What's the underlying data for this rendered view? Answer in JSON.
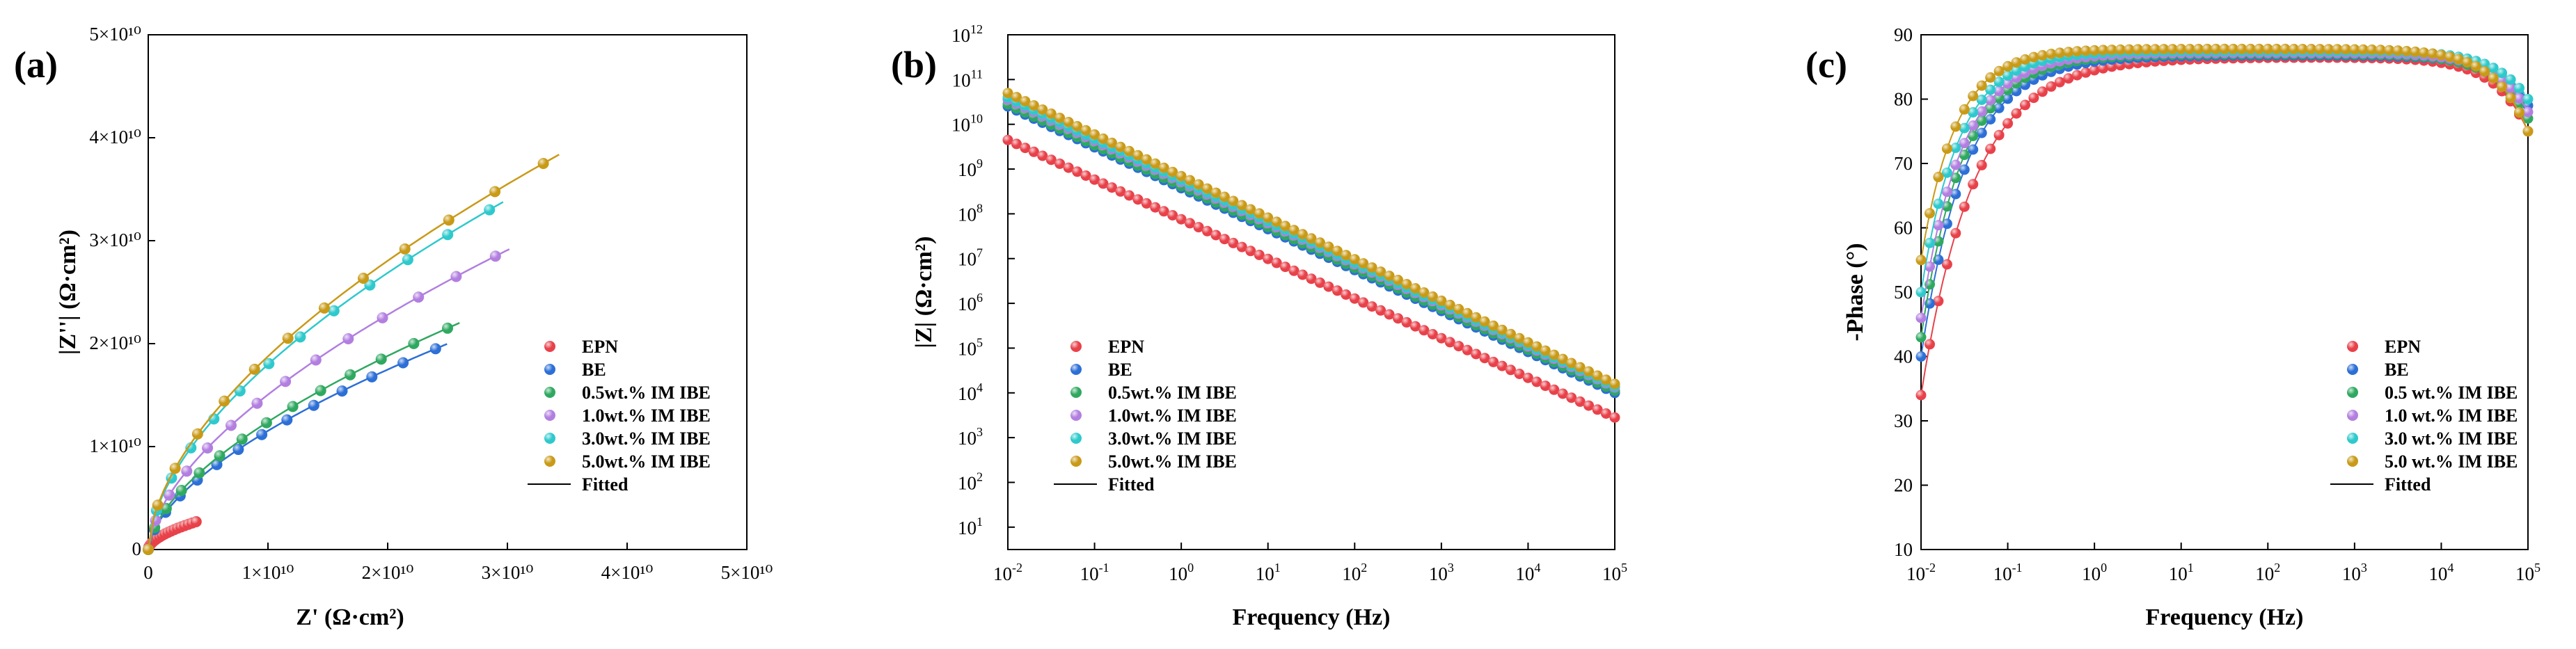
{
  "colors": {
    "EPN": "#e8414a",
    "BE": "#2c6fd6",
    "IBE05": "#2fa860",
    "IBE10": "#b27fe0",
    "IBE30": "#2ec9cc",
    "IBE50": "#c99a17",
    "fitted": "#000000"
  },
  "panels": {
    "a": {
      "letter": "(a)"
    },
    "b": {
      "letter": "(b)"
    },
    "c": {
      "letter": "(c)"
    }
  },
  "chart_data": [
    {
      "id": "a",
      "type": "scatter",
      "title": "",
      "xlabel": "Z' (Ω·cm²)",
      "ylabel": "|Z''| (Ω·cm²)",
      "xlim": [
        0,
        50000000000.0
      ],
      "ylim": [
        0,
        50000000000.0
      ],
      "xticks": [
        {
          "value": 0,
          "label": "0"
        },
        {
          "value": 10000000000.0,
          "label": "1×10¹⁰"
        },
        {
          "value": 20000000000.0,
          "label": "2×10¹⁰"
        },
        {
          "value": 30000000000.0,
          "label": "3×10¹⁰"
        },
        {
          "value": 40000000000.0,
          "label": "4×10¹⁰"
        },
        {
          "value": 50000000000.0,
          "label": "5×10¹⁰"
        }
      ],
      "yticks": [
        {
          "value": 0,
          "label": "0"
        },
        {
          "value": 10000000000.0,
          "label": "1×10¹⁰"
        },
        {
          "value": 20000000000.0,
          "label": "2×10¹⁰"
        },
        {
          "value": 30000000000.0,
          "label": "3×10¹⁰"
        },
        {
          "value": 40000000000.0,
          "label": "4×10¹⁰"
        },
        {
          "value": 50000000000.0,
          "label": "5×10¹⁰"
        }
      ],
      "legend": {
        "position": "center-right",
        "entries": [
          {
            "label": "EPN",
            "color_key": "EPN",
            "kind": "marker"
          },
          {
            "label": "BE",
            "color_key": "BE",
            "kind": "marker"
          },
          {
            "label": "0.5wt.% IM IBE",
            "color_key": "IBE05",
            "kind": "marker"
          },
          {
            "label": "1.0wt.% IM IBE",
            "color_key": "IBE10",
            "kind": "marker"
          },
          {
            "label": "3.0wt.% IM IBE",
            "color_key": "IBE30",
            "kind": "marker"
          },
          {
            "label": "5.0wt.% IM IBE",
            "color_key": "IBE50",
            "kind": "marker"
          },
          {
            "label": "Fitted",
            "color_key": "fitted",
            "kind": "line"
          }
        ]
      },
      "series": [
        {
          "name": "EPN",
          "color_key": "EPN",
          "x_end": 4000000000.0,
          "y_end": 2700000000.0,
          "shape_k": 0.55,
          "n": 18
        },
        {
          "name": "BE",
          "color_key": "BE",
          "x_end": 24000000000.0,
          "y_end": 19500000000.0,
          "shape_k": 0.6,
          "n": 13
        },
        {
          "name": "0.5wt.% IM IBE",
          "color_key": "IBE05",
          "x_end": 25000000000.0,
          "y_end": 21500000000.0,
          "shape_k": 0.6,
          "n": 13
        },
        {
          "name": "1.0wt.% IM IBE",
          "color_key": "IBE10",
          "x_end": 29000000000.0,
          "y_end": 28500000000.0,
          "shape_k": 0.6,
          "n": 13
        },
        {
          "name": "3.0wt.% IM IBE",
          "color_key": "IBE30",
          "x_end": 28500000000.0,
          "y_end": 33000000000.0,
          "shape_k": 0.58,
          "n": 12
        },
        {
          "name": "5.0wt.% IM IBE",
          "color_key": "IBE50",
          "x_end": 33000000000.0,
          "y_end": 37500000000.0,
          "shape_k": 0.58,
          "n": 12
        }
      ],
      "fitted_extend": 1.04
    },
    {
      "id": "b",
      "type": "scatter",
      "title": "",
      "xlabel": "Frequency (Hz)",
      "ylabel": "|Z| (Ω·cm²)",
      "xscale": "log",
      "yscale": "log",
      "xlim_exp": [
        -2,
        5
      ],
      "ylim_exp": [
        0.5,
        12
      ],
      "xticks": [
        {
          "exp": -2,
          "label": "10-2"
        },
        {
          "exp": -1,
          "label": "10-1"
        },
        {
          "exp": 0,
          "label": "100"
        },
        {
          "exp": 1,
          "label": "101"
        },
        {
          "exp": 2,
          "label": "102"
        },
        {
          "exp": 3,
          "label": "103"
        },
        {
          "exp": 4,
          "label": "104"
        },
        {
          "exp": 5,
          "label": "105"
        }
      ],
      "yticks": [
        {
          "exp": 1,
          "label": "101"
        },
        {
          "exp": 2,
          "label": "102"
        },
        {
          "exp": 3,
          "label": "103"
        },
        {
          "exp": 4,
          "label": "104"
        },
        {
          "exp": 5,
          "label": "105"
        },
        {
          "exp": 6,
          "label": "106"
        },
        {
          "exp": 7,
          "label": "107"
        },
        {
          "exp": 8,
          "label": "108"
        },
        {
          "exp": 9,
          "label": "109"
        },
        {
          "exp": 10,
          "label": "1010"
        },
        {
          "exp": 11,
          "label": "1011"
        },
        {
          "exp": 12,
          "label": "1012"
        }
      ],
      "legend": {
        "position": "lower-left",
        "entries": [
          {
            "label": "EPN",
            "color_key": "EPN",
            "kind": "marker"
          },
          {
            "label": "BE",
            "color_key": "BE",
            "kind": "marker"
          },
          {
            "label": "0.5wt.% IM IBE",
            "color_key": "IBE05",
            "kind": "marker"
          },
          {
            "label": "1.0wt.% IM IBE",
            "color_key": "IBE10",
            "kind": "marker"
          },
          {
            "label": "3.0wt.% IM IBE",
            "color_key": "IBE30",
            "kind": "marker"
          },
          {
            "label": "5.0wt.% IM IBE",
            "color_key": "IBE50",
            "kind": "marker"
          },
          {
            "label": "Fitted",
            "color_key": "fitted",
            "kind": "line"
          }
        ]
      },
      "series": [
        {
          "name": "EPN",
          "color_key": "EPN",
          "logy_start": 9.65,
          "logy_end": 3.45
        },
        {
          "name": "BE",
          "color_key": "BE",
          "logy_start": 10.4,
          "logy_end": 4.0
        },
        {
          "name": "0.5wt.% IM IBE",
          "color_key": "IBE05",
          "logy_start": 10.45,
          "logy_end": 4.05
        },
        {
          "name": "1.0wt.% IM IBE",
          "color_key": "IBE10",
          "logy_start": 10.55,
          "logy_end": 4.12
        },
        {
          "name": "3.0wt.% IM IBE",
          "color_key": "IBE30",
          "logy_start": 10.6,
          "logy_end": 4.15
        },
        {
          "name": "5.0wt.% IM IBE",
          "color_key": "IBE50",
          "logy_start": 10.7,
          "logy_end": 4.2
        }
      ],
      "points_per_decade": 10
    },
    {
      "id": "c",
      "type": "scatter",
      "title": "",
      "xlabel": "Frequency (Hz)",
      "ylabel": "-Phase (°)",
      "xscale": "log",
      "xlim_exp": [
        -2,
        5
      ],
      "ylim": [
        10,
        90
      ],
      "xticks": [
        {
          "exp": -2,
          "label": "10-2"
        },
        {
          "exp": -1,
          "label": "10-1"
        },
        {
          "exp": 0,
          "label": "100"
        },
        {
          "exp": 1,
          "label": "101"
        },
        {
          "exp": 2,
          "label": "102"
        },
        {
          "exp": 3,
          "label": "103"
        },
        {
          "exp": 4,
          "label": "104"
        },
        {
          "exp": 5,
          "label": "105"
        }
      ],
      "yticks": [
        10,
        20,
        30,
        40,
        50,
        60,
        70,
        80,
        90
      ],
      "legend": {
        "position": "lower-right",
        "entries": [
          {
            "label": "EPN",
            "color_key": "EPN",
            "kind": "marker"
          },
          {
            "label": "BE",
            "color_key": "BE",
            "kind": "marker"
          },
          {
            "label": "0.5 wt.% IM IBE",
            "color_key": "IBE05",
            "kind": "marker"
          },
          {
            "label": "1.0 wt.% IM IBE",
            "color_key": "IBE10",
            "kind": "marker"
          },
          {
            "label": "3.0 wt.% IM IBE",
            "color_key": "IBE30",
            "kind": "marker"
          },
          {
            "label": "5.0 wt.% IM IBE",
            "color_key": "IBE50",
            "kind": "marker"
          },
          {
            "label": "Fitted",
            "color_key": "fitted",
            "kind": "line"
          }
        ]
      },
      "series": [
        {
          "name": "EPN",
          "color_key": "EPN",
          "start": 34,
          "plateau": 86.5,
          "rise_tau": 0.95,
          "end": 75
        },
        {
          "name": "BE",
          "color_key": "BE",
          "start": 40,
          "plateau": 86.8,
          "rise_tau": 0.8,
          "end": 79
        },
        {
          "name": "0.5 wt.% IM IBE",
          "color_key": "IBE05",
          "start": 43,
          "plateau": 87.0,
          "rise_tau": 0.75,
          "end": 77
        },
        {
          "name": "1.0 wt.% IM IBE",
          "color_key": "IBE10",
          "start": 46,
          "plateau": 87.2,
          "rise_tau": 0.72,
          "end": 78
        },
        {
          "name": "3.0 wt.% IM IBE",
          "color_key": "IBE30",
          "start": 50,
          "plateau": 87.5,
          "rise_tau": 0.68,
          "end": 80
        },
        {
          "name": "5.0 wt.% IM IBE",
          "color_key": "IBE50",
          "start": 55,
          "plateau": 87.8,
          "rise_tau": 0.62,
          "end": 75
        }
      ],
      "points_per_decade": 10
    }
  ]
}
